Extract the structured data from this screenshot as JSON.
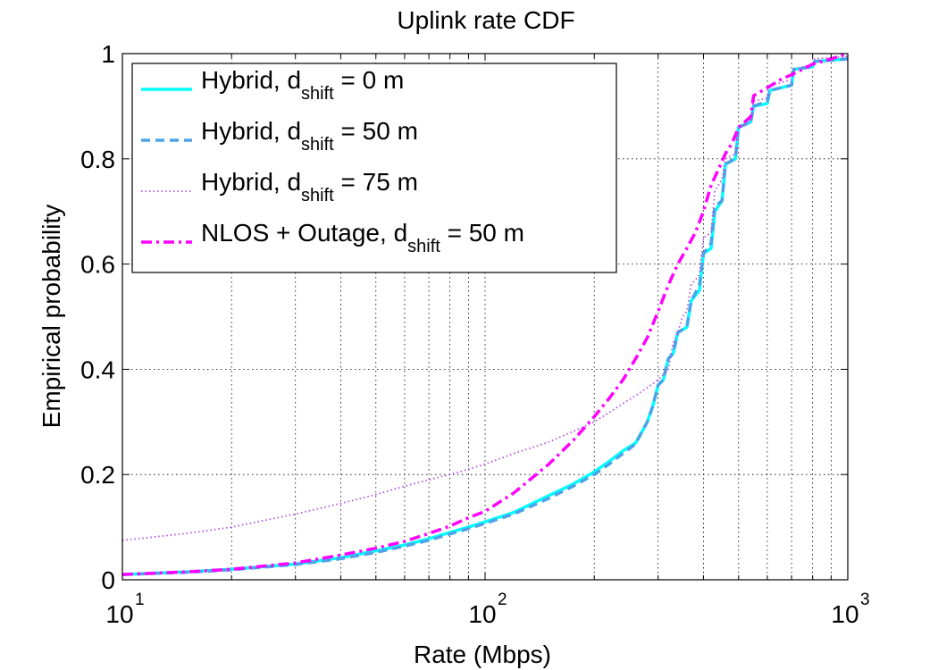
{
  "chart_data": {
    "type": "line",
    "title": "Uplink rate CDF",
    "xlabel": "Rate (Mbps)",
    "ylabel": "Empirical probability",
    "xscale": "log",
    "xlim": [
      10,
      1000
    ],
    "ylim": [
      0,
      1
    ],
    "grid": true,
    "legend_position": "top-left",
    "y_ticks": [
      "0",
      "0.2",
      "0.4",
      "0.6",
      "0.8",
      "1"
    ],
    "x_ticks": [
      {
        "base": "10",
        "exp": "1"
      },
      {
        "base": "10",
        "exp": "2"
      },
      {
        "base": "10",
        "exp": "3"
      }
    ],
    "series": [
      {
        "name": "Hybrid, d_shift = 0 m",
        "legend_parts": [
          "Hybrid, d",
          "shift",
          " = 0 m"
        ],
        "color": "#00ffff",
        "style": "solid",
        "points": [
          [
            10,
            0.01
          ],
          [
            15,
            0.015
          ],
          [
            20,
            0.02
          ],
          [
            30,
            0.03
          ],
          [
            40,
            0.042
          ],
          [
            50,
            0.055
          ],
          [
            60,
            0.066
          ],
          [
            70,
            0.078
          ],
          [
            80,
            0.09
          ],
          [
            90,
            0.1
          ],
          [
            100,
            0.11
          ],
          [
            120,
            0.128
          ],
          [
            150,
            0.16
          ],
          [
            175,
            0.182
          ],
          [
            200,
            0.205
          ],
          [
            220,
            0.225
          ],
          [
            240,
            0.245
          ],
          [
            260,
            0.26
          ],
          [
            270,
            0.28
          ],
          [
            280,
            0.3
          ],
          [
            290,
            0.33
          ],
          [
            300,
            0.37
          ],
          [
            310,
            0.38
          ],
          [
            320,
            0.42
          ],
          [
            330,
            0.43
          ],
          [
            340,
            0.47
          ],
          [
            360,
            0.48
          ],
          [
            370,
            0.53
          ],
          [
            390,
            0.55
          ],
          [
            400,
            0.62
          ],
          [
            420,
            0.63
          ],
          [
            430,
            0.7
          ],
          [
            450,
            0.72
          ],
          [
            460,
            0.79
          ],
          [
            490,
            0.8
          ],
          [
            500,
            0.86
          ],
          [
            540,
            0.87
          ],
          [
            550,
            0.9
          ],
          [
            600,
            0.905
          ],
          [
            610,
            0.93
          ],
          [
            700,
            0.94
          ],
          [
            710,
            0.97
          ],
          [
            800,
            0.975
          ],
          [
            810,
            0.985
          ],
          [
            1000,
            0.99
          ]
        ]
      },
      {
        "name": "Hybrid, d_shift = 50 m",
        "legend_parts": [
          "Hybrid, d",
          "shift",
          " = 50 m"
        ],
        "color": "#4da3e8",
        "style": "dashed",
        "points": [
          [
            10,
            0.01
          ],
          [
            15,
            0.014
          ],
          [
            20,
            0.019
          ],
          [
            30,
            0.029
          ],
          [
            40,
            0.04
          ],
          [
            50,
            0.052
          ],
          [
            60,
            0.064
          ],
          [
            70,
            0.075
          ],
          [
            80,
            0.087
          ],
          [
            90,
            0.097
          ],
          [
            100,
            0.107
          ],
          [
            120,
            0.125
          ],
          [
            150,
            0.155
          ],
          [
            175,
            0.178
          ],
          [
            200,
            0.2
          ],
          [
            220,
            0.22
          ],
          [
            240,
            0.24
          ],
          [
            260,
            0.258
          ],
          [
            270,
            0.28
          ],
          [
            280,
            0.3
          ],
          [
            290,
            0.33
          ],
          [
            300,
            0.37
          ],
          [
            310,
            0.38
          ],
          [
            320,
            0.42
          ],
          [
            330,
            0.43
          ],
          [
            340,
            0.47
          ],
          [
            360,
            0.48
          ],
          [
            370,
            0.53
          ],
          [
            390,
            0.56
          ],
          [
            400,
            0.62
          ],
          [
            420,
            0.64
          ],
          [
            430,
            0.71
          ],
          [
            450,
            0.72
          ],
          [
            460,
            0.79
          ],
          [
            490,
            0.8
          ],
          [
            500,
            0.86
          ],
          [
            540,
            0.87
          ],
          [
            550,
            0.9
          ],
          [
            600,
            0.91
          ],
          [
            610,
            0.93
          ],
          [
            700,
            0.94
          ],
          [
            710,
            0.97
          ],
          [
            800,
            0.975
          ],
          [
            810,
            0.985
          ],
          [
            1000,
            0.99
          ]
        ]
      },
      {
        "name": "Hybrid, d_shift = 75 m",
        "legend_parts": [
          "Hybrid, d",
          "shift",
          " = 75 m"
        ],
        "color": "#b44fe0",
        "style": "dotted",
        "points": [
          [
            10,
            0.075
          ],
          [
            15,
            0.088
          ],
          [
            20,
            0.1
          ],
          [
            30,
            0.125
          ],
          [
            40,
            0.145
          ],
          [
            50,
            0.162
          ],
          [
            60,
            0.178
          ],
          [
            70,
            0.19
          ],
          [
            80,
            0.2
          ],
          [
            90,
            0.21
          ],
          [
            100,
            0.22
          ],
          [
            120,
            0.24
          ],
          [
            150,
            0.262
          ],
          [
            175,
            0.282
          ],
          [
            200,
            0.3
          ],
          [
            220,
            0.318
          ],
          [
            240,
            0.335
          ],
          [
            260,
            0.35
          ],
          [
            280,
            0.365
          ],
          [
            300,
            0.38
          ],
          [
            320,
            0.4
          ],
          [
            330,
            0.45
          ],
          [
            340,
            0.47
          ],
          [
            350,
            0.5
          ],
          [
            360,
            0.51
          ],
          [
            370,
            0.56
          ],
          [
            390,
            0.58
          ],
          [
            400,
            0.65
          ],
          [
            420,
            0.66
          ],
          [
            430,
            0.74
          ],
          [
            450,
            0.76
          ],
          [
            460,
            0.8
          ],
          [
            490,
            0.81
          ],
          [
            500,
            0.86
          ],
          [
            540,
            0.87
          ],
          [
            550,
            0.91
          ],
          [
            600,
            0.915
          ],
          [
            610,
            0.94
          ],
          [
            700,
            0.95
          ],
          [
            710,
            0.97
          ],
          [
            800,
            0.98
          ],
          [
            810,
            0.99
          ],
          [
            1000,
            0.995
          ]
        ]
      },
      {
        "name": "NLOS + Outage, d_shift = 50 m",
        "legend_parts": [
          "NLOS + Outage, d",
          "shift",
          " = 50 m"
        ],
        "color": "#ff00ff",
        "style": "dashdot",
        "points": [
          [
            10,
            0.01
          ],
          [
            15,
            0.015
          ],
          [
            20,
            0.02
          ],
          [
            30,
            0.032
          ],
          [
            40,
            0.047
          ],
          [
            50,
            0.06
          ],
          [
            60,
            0.073
          ],
          [
            70,
            0.088
          ],
          [
            80,
            0.102
          ],
          [
            90,
            0.118
          ],
          [
            100,
            0.13
          ],
          [
            120,
            0.165
          ],
          [
            150,
            0.22
          ],
          [
            175,
            0.265
          ],
          [
            200,
            0.31
          ],
          [
            220,
            0.345
          ],
          [
            240,
            0.38
          ],
          [
            260,
            0.42
          ],
          [
            280,
            0.46
          ],
          [
            300,
            0.51
          ],
          [
            320,
            0.56
          ],
          [
            340,
            0.6
          ],
          [
            360,
            0.63
          ],
          [
            380,
            0.66
          ],
          [
            400,
            0.7
          ],
          [
            420,
            0.75
          ],
          [
            440,
            0.78
          ],
          [
            460,
            0.81
          ],
          [
            480,
            0.83
          ],
          [
            500,
            0.86
          ],
          [
            540,
            0.88
          ],
          [
            550,
            0.92
          ],
          [
            600,
            0.935
          ],
          [
            650,
            0.95
          ],
          [
            700,
            0.96
          ],
          [
            750,
            0.97
          ],
          [
            800,
            0.98
          ],
          [
            900,
            0.99
          ],
          [
            1000,
            1.0
          ]
        ]
      }
    ]
  }
}
